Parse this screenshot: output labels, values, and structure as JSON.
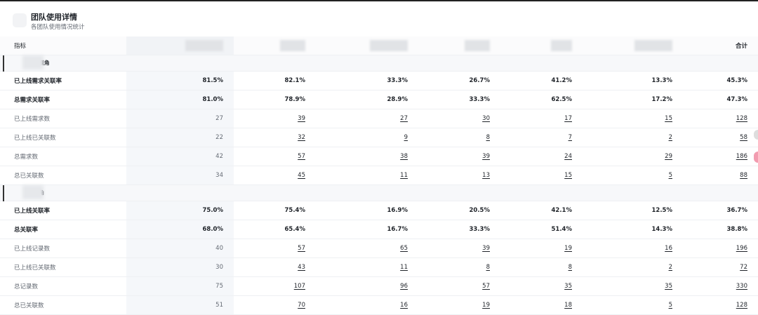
{
  "header": {
    "title": "团队使用详情",
    "subtitle": "各团队使用情况统计"
  },
  "table": {
    "columns": {
      "label": "指标",
      "total": "合计"
    },
    "sections": [
      {
        "title": "求视角",
        "rows": [
          {
            "label": "已上线需求关联率",
            "emphasis": true,
            "values": [
              "81.5%",
              "82.1%",
              "33.3%",
              "26.7%",
              "41.2%",
              "13.3%",
              "45.3%"
            ]
          },
          {
            "label": "总需求关联率",
            "emphasis": true,
            "values": [
              "81.0%",
              "78.9%",
              "28.9%",
              "33.3%",
              "62.5%",
              "17.2%",
              "47.3%"
            ]
          },
          {
            "label": "已上线需求数",
            "emphasis": false,
            "values": [
              "27",
              "39",
              "27",
              "30",
              "17",
              "15",
              "128"
            ]
          },
          {
            "label": "已上线已关联数",
            "emphasis": false,
            "values": [
              "22",
              "32",
              "9",
              "8",
              "7",
              "2",
              "58"
            ]
          },
          {
            "label": "总需求数",
            "emphasis": false,
            "values": [
              "42",
              "57",
              "38",
              "39",
              "24",
              "29",
              "186"
            ]
          },
          {
            "label": "总已关联数",
            "emphasis": false,
            "values": [
              "34",
              "45",
              "11",
              "13",
              "15",
              "5",
              "88"
            ]
          }
        ]
      },
      {
        "title": "视角",
        "rows": [
          {
            "label": "已上线关联率",
            "emphasis": true,
            "values": [
              "75.0%",
              "75.4%",
              "16.9%",
              "20.5%",
              "42.1%",
              "12.5%",
              "36.7%"
            ]
          },
          {
            "label": "总关联率",
            "emphasis": true,
            "values": [
              "68.0%",
              "65.4%",
              "16.7%",
              "33.3%",
              "51.4%",
              "14.3%",
              "38.8%"
            ]
          },
          {
            "label": "已上线记录数",
            "emphasis": false,
            "values": [
              "40",
              "57",
              "65",
              "39",
              "19",
              "16",
              "196"
            ]
          },
          {
            "label": "已上线已关联数",
            "emphasis": false,
            "values": [
              "30",
              "43",
              "11",
              "8",
              "8",
              "2",
              "72"
            ]
          },
          {
            "label": "总记录数",
            "emphasis": false,
            "values": [
              "75",
              "107",
              "96",
              "57",
              "35",
              "35",
              "330"
            ]
          },
          {
            "label": "总已关联数",
            "emphasis": false,
            "values": [
              "51",
              "70",
              "16",
              "19",
              "18",
              "5",
              "128"
            ]
          }
        ]
      }
    ]
  }
}
